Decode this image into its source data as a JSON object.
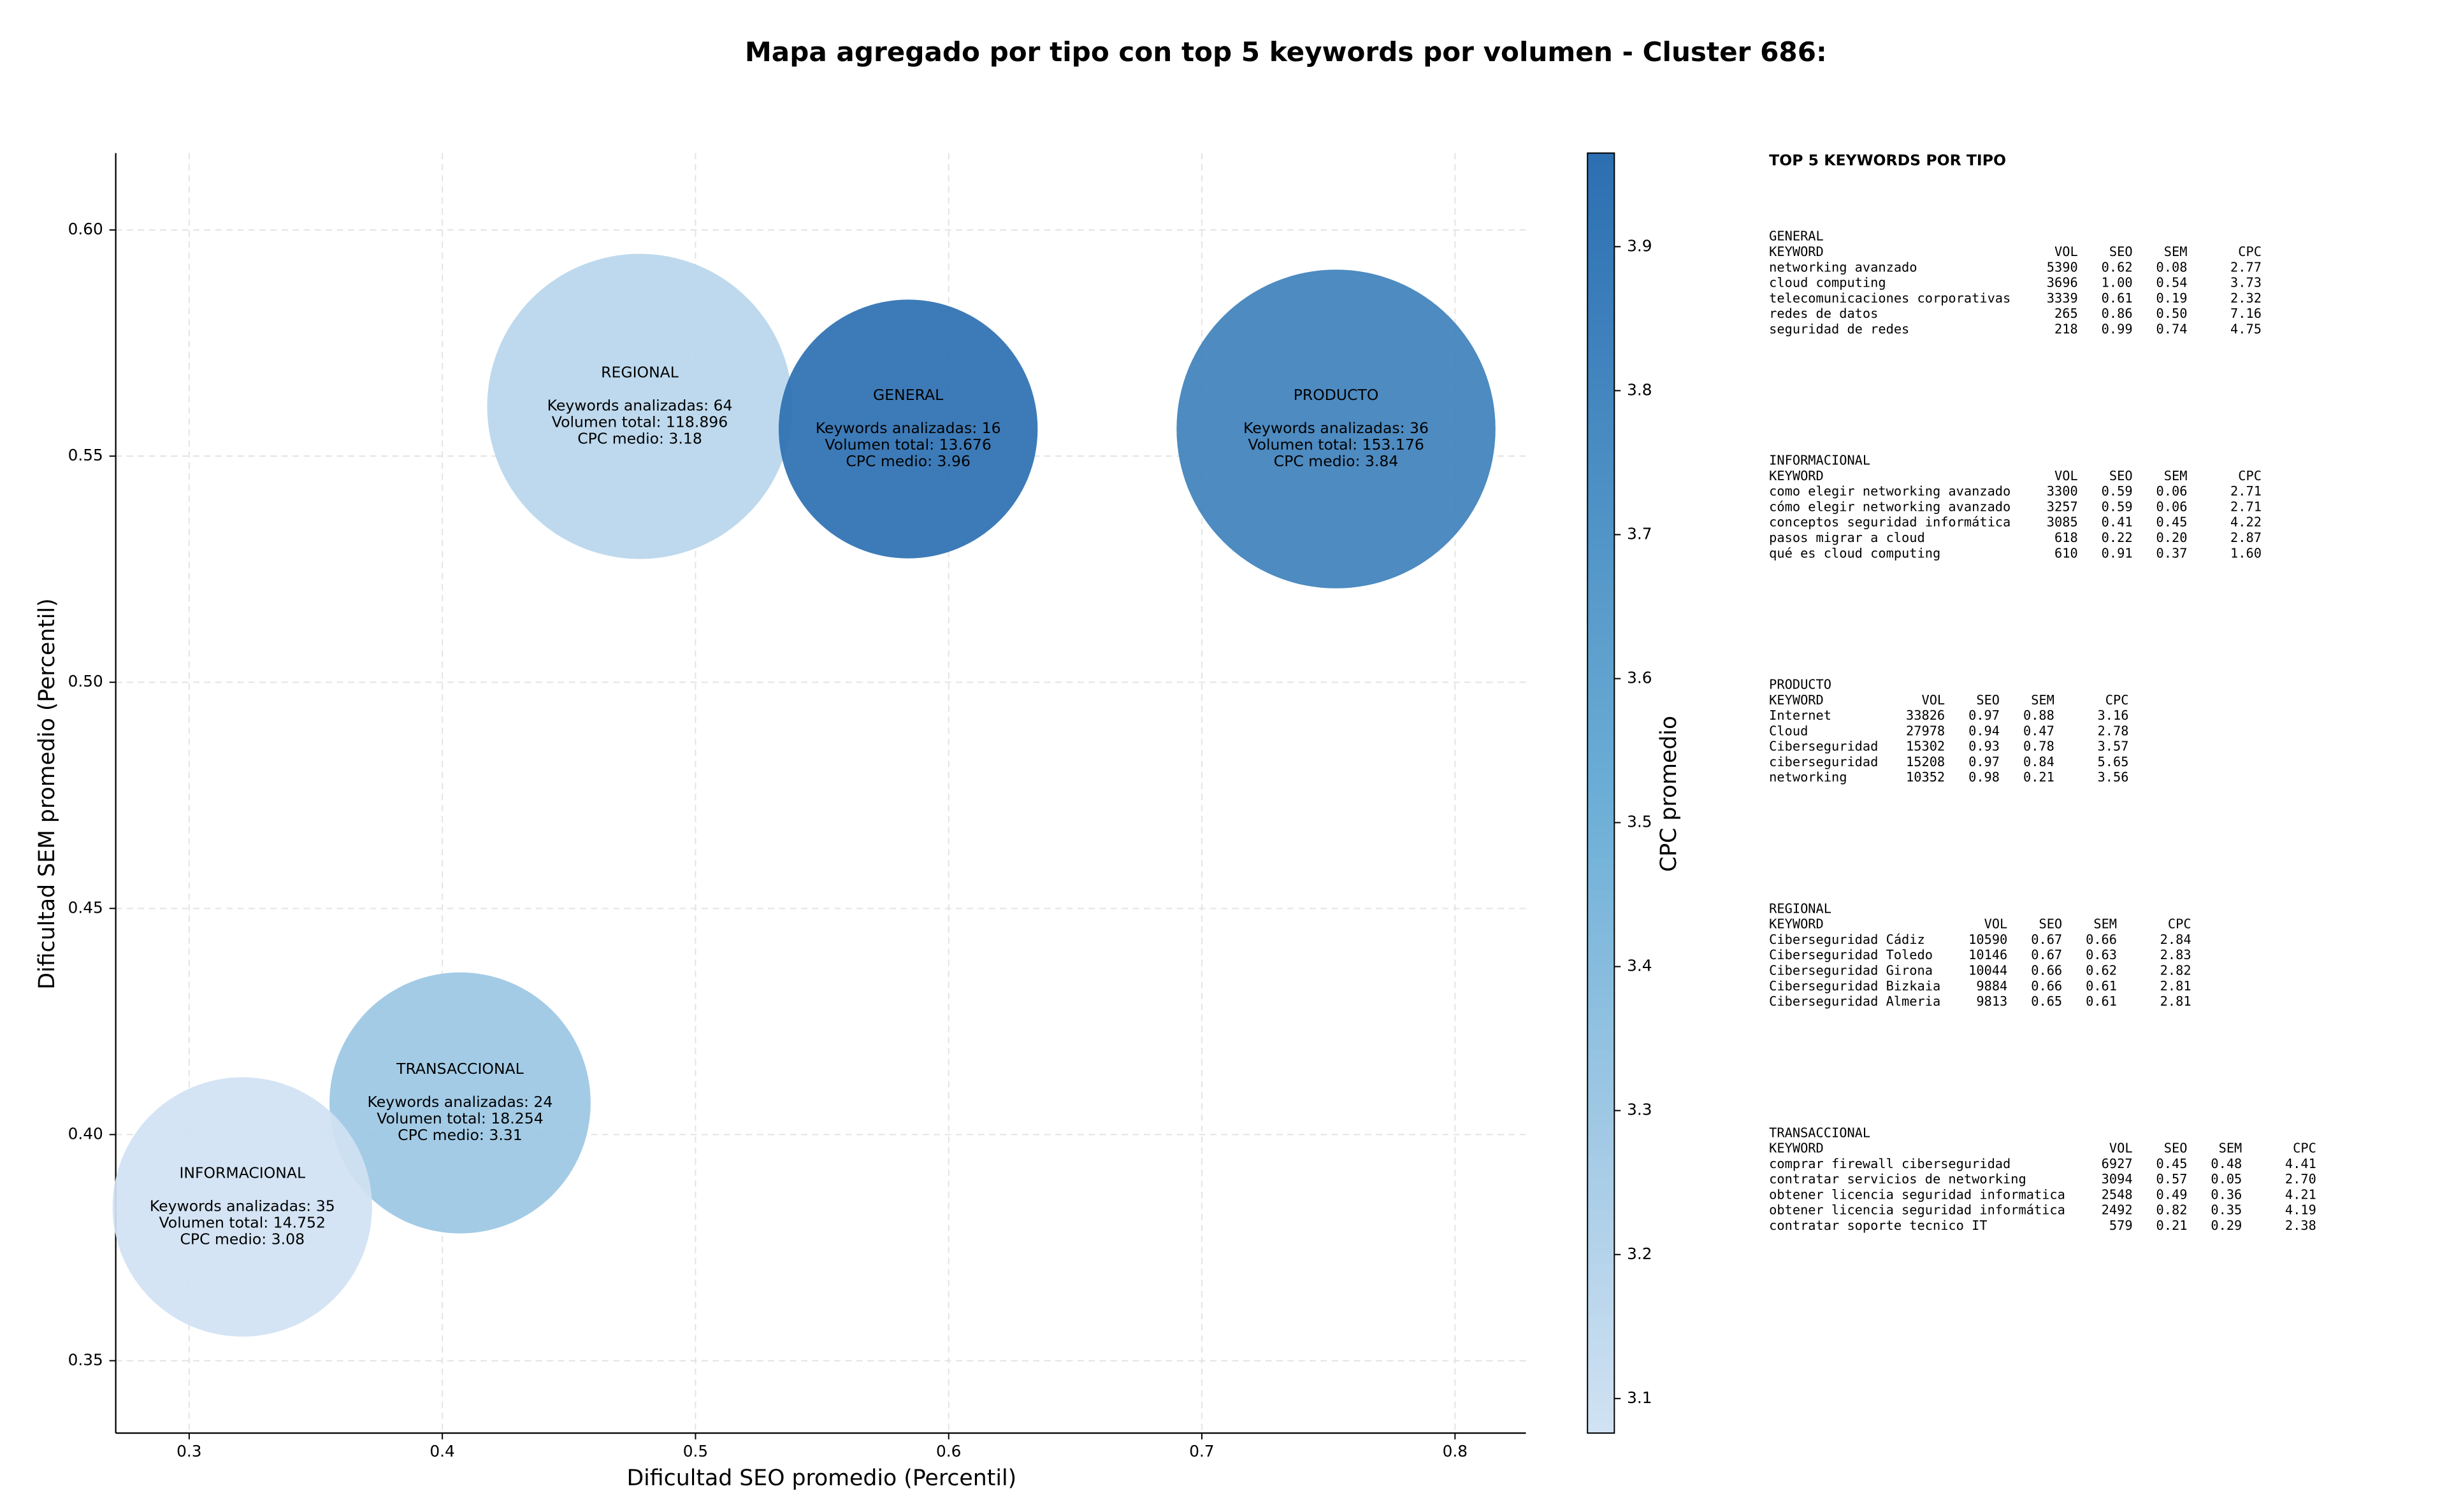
{
  "chart_data": {
    "type": "bubble",
    "title": "Mapa agregado por tipo con top 5 keywords por volumen - Cluster 686:",
    "x_label": "Dificultad SEO promedio (Percentil)",
    "y_label": "Dificultad SEM promedio (Percentil)",
    "xlim": [
      0.271,
      0.828
    ],
    "xticks": [
      0.3,
      0.4,
      0.5,
      0.6,
      0.7,
      0.8
    ],
    "ylim": [
      0.334,
      0.617
    ],
    "yticks": [
      0.35,
      {
        "value": 0.4,
        "label": "0.40"
      },
      0.45,
      {
        "value": 0.5,
        "label": "0.50"
      },
      0.55,
      {
        "value": 0.6,
        "label": "0.60"
      }
    ],
    "grid": true,
    "series": [
      {
        "name": "REGIONAL",
        "x": 0.478,
        "y": 0.561,
        "size": 118896,
        "color_value": 3.18,
        "labels": [
          "Keywords analizadas: 64",
          "Volumen total: 118.896",
          "CPC medio: 3.18"
        ]
      },
      {
        "name": "GENERAL",
        "x": 0.584,
        "y": 0.556,
        "size": 13676,
        "color_value": 3.96,
        "labels": [
          "Keywords analizadas: 16",
          "Volumen total: 13.676",
          "CPC medio: 3.96"
        ]
      },
      {
        "name": "PRODUCTO",
        "x": 0.753,
        "y": 0.556,
        "size": 153176,
        "color_value": 3.84,
        "labels": [
          "Keywords analizadas: 36",
          "Volumen total: 153.176",
          "CPC medio: 3.84"
        ]
      },
      {
        "name": "TRANSACCIONAL",
        "x": 0.407,
        "y": 0.407,
        "size": 18254,
        "color_value": 3.31,
        "labels": [
          "Keywords analizadas: 24",
          "Volumen total: 18.254",
          "CPC medio: 3.31"
        ]
      },
      {
        "name": "INFORMACIONAL",
        "x": 0.321,
        "y": 0.384,
        "size": 14752,
        "color_value": 3.08,
        "labels": [
          "Keywords analizadas: 35",
          "Volumen total: 14.752",
          "CPC medio: 3.08"
        ]
      }
    ],
    "colorbar": {
      "label": "CPC promedio",
      "lim": [
        3.076,
        3.965
      ],
      "ticks": [
        3.1,
        3.2,
        3.3,
        3.4,
        3.5,
        3.6,
        3.7,
        3.8,
        3.9
      ],
      "colormap": [
        "#d1e2f3",
        "#6baed6",
        "#2c6fb2"
      ]
    }
  },
  "side_panel": {
    "title": "TOP 5 KEYWORDS POR TIPO",
    "header": [
      "KEYWORD",
      "VOL",
      "SEO",
      "SEM",
      "CPC"
    ],
    "blocks": [
      {
        "name": "GENERAL",
        "rows": [
          [
            "networking avanzado",
            "5390",
            "0.62",
            "0.08",
            "2.77"
          ],
          [
            "cloud computing",
            "3696",
            "1.00",
            "0.54",
            "3.73"
          ],
          [
            "telecomunicaciones corporativas",
            "3339",
            "0.61",
            "0.19",
            "2.32"
          ],
          [
            "redes de datos",
            "265",
            "0.86",
            "0.50",
            "7.16"
          ],
          [
            "seguridad de redes",
            "218",
            "0.99",
            "0.74",
            "4.75"
          ]
        ]
      },
      {
        "name": "INFORMACIONAL",
        "rows": [
          [
            "como elegir networking avanzado",
            "3300",
            "0.59",
            "0.06",
            "2.71"
          ],
          [
            "cómo elegir networking avanzado",
            "3257",
            "0.59",
            "0.06",
            "2.71"
          ],
          [
            "conceptos seguridad informática",
            "3085",
            "0.41",
            "0.45",
            "4.22"
          ],
          [
            "pasos migrar a cloud",
            "618",
            "0.22",
            "0.20",
            "2.87"
          ],
          [
            "qué es cloud computing",
            "610",
            "0.91",
            "0.37",
            "1.60"
          ]
        ]
      },
      {
        "name": "PRODUCTO",
        "rows": [
          [
            "Internet",
            "33826",
            "0.97",
            "0.88",
            "3.16"
          ],
          [
            "Cloud",
            "27978",
            "0.94",
            "0.47",
            "2.78"
          ],
          [
            "Ciberseguridad",
            "15302",
            "0.93",
            "0.78",
            "3.57"
          ],
          [
            "ciberseguridad",
            "15208",
            "0.97",
            "0.84",
            "5.65"
          ],
          [
            "networking",
            "10352",
            "0.98",
            "0.21",
            "3.56"
          ]
        ]
      },
      {
        "name": "REGIONAL",
        "rows": [
          [
            "Ciberseguridad Cádiz",
            "10590",
            "0.67",
            "0.66",
            "2.84"
          ],
          [
            "Ciberseguridad Toledo",
            "10146",
            "0.67",
            "0.63",
            "2.83"
          ],
          [
            "Ciberseguridad Girona",
            "10044",
            "0.66",
            "0.62",
            "2.82"
          ],
          [
            "Ciberseguridad Bizkaia",
            "9884",
            "0.66",
            "0.61",
            "2.81"
          ],
          [
            "Ciberseguridad Almeria",
            "9813",
            "0.65",
            "0.61",
            "2.81"
          ]
        ]
      },
      {
        "name": "TRANSACCIONAL",
        "rows": [
          [
            "comprar firewall ciberseguridad",
            "6927",
            "0.45",
            "0.48",
            "4.41"
          ],
          [
            "contratar servicios de networking",
            "3094",
            "0.57",
            "0.05",
            "2.70"
          ],
          [
            "obtener licencia seguridad informatica",
            "2548",
            "0.49",
            "0.36",
            "4.21"
          ],
          [
            "obtener licencia seguridad informática",
            "2492",
            "0.82",
            "0.35",
            "4.19"
          ],
          [
            "contratar soporte tecnico IT",
            "579",
            "0.21",
            "0.29",
            "2.38"
          ]
        ]
      }
    ]
  }
}
